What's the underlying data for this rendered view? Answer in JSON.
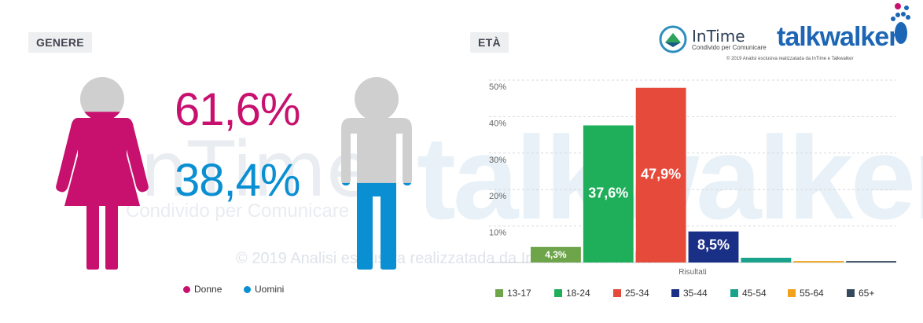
{
  "gender": {
    "label": "GENERE",
    "female_pct": "61,6%",
    "male_pct": "38,4%",
    "female_value": 61.6,
    "male_value": 38.4,
    "legend": [
      {
        "name": "Donne",
        "color": "#c8106e"
      },
      {
        "name": "Uomini",
        "color": "#0a8fd2"
      }
    ],
    "icon_female": "woman-icon",
    "icon_male": "man-icon",
    "empty_color": "#cfcfcf"
  },
  "age": {
    "label": "ETÀ"
  },
  "watermark": {
    "intime": "InTime",
    "talkwalker": "talkwalker",
    "sub": "Condivido per Comunicare",
    "copy": "© 2019 Analisi esclusiva realizzatada da InTime e Talkwalker"
  },
  "logo": {
    "intime_name": "InTime",
    "intime_sub": "Condivido per Comunicare",
    "talkwalker": "talkwalker",
    "copy_note": "© 2019 Analisi esclusiva realizzatada da InTime e Talkwalker"
  },
  "chart_data": {
    "type": "bar",
    "title": "",
    "xlabel": "Risultati",
    "ylabel": "",
    "ylim": [
      0,
      50
    ],
    "yticks": [
      "10%",
      "20%",
      "30%",
      "40%",
      "50%"
    ],
    "grid": true,
    "legend_position": "bottom",
    "categories": [
      "13-17",
      "18-24",
      "25-34",
      "35-44",
      "45-54",
      "55-64",
      "65+"
    ],
    "values": [
      4.3,
      37.6,
      47.9,
      8.5,
      1.3,
      0.4,
      0.4
    ],
    "labels": [
      "4,3%",
      "37,6%",
      "47,9%",
      "8,5%",
      "",
      "",
      ""
    ],
    "colors": [
      "#6ea54a",
      "#1fae5a",
      "#e64a3b",
      "#1a2f86",
      "#1aa38a",
      "#f0a21b",
      "#34495e"
    ]
  }
}
